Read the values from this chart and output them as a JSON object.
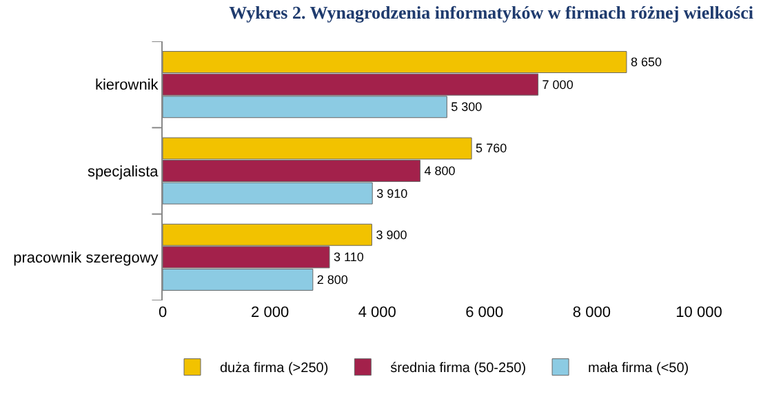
{
  "chart_data": {
    "type": "bar",
    "orientation": "horizontal",
    "title": "Wykres 2. Wynagrodzenia informatyków w firmach różnej wielkości",
    "categories": [
      "kierownik",
      "specjalista",
      "pracownik szeregowy"
    ],
    "series": [
      {
        "name": "duża firma (>250)",
        "color": "#f2c200",
        "values": [
          8650,
          5760,
          3900
        ],
        "value_labels": [
          "8 650",
          "5 760",
          "3 900"
        ]
      },
      {
        "name": "średnia firma (50-250)",
        "color": "#a3214b",
        "values": [
          7000,
          4800,
          3110
        ],
        "value_labels": [
          "7 000",
          "4 800",
          "3 110"
        ]
      },
      {
        "name": "mała firma (<50)",
        "color": "#8ccbe3",
        "values": [
          5300,
          3910,
          2800
        ],
        "value_labels": [
          "5 300",
          "3 910",
          "2 800"
        ]
      }
    ],
    "xlim": [
      0,
      10000
    ],
    "xticks": [
      0,
      {
        "value": 2000,
        "label": "2 000"
      },
      {
        "value": 4000,
        "label": "4 000"
      },
      {
        "value": 6000,
        "label": "6 000"
      },
      {
        "value": 8000,
        "label": "8 000"
      },
      {
        "value": 10000,
        "label": "10 000"
      }
    ],
    "grid": false,
    "legend": "bottom"
  }
}
